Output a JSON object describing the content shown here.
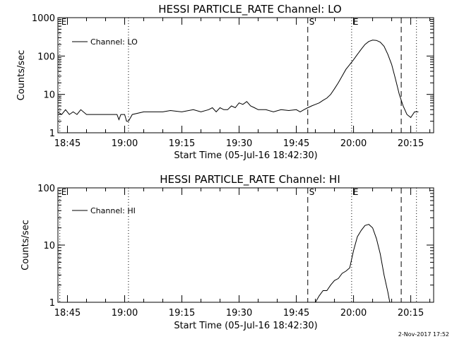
{
  "footer": {
    "timestamp": "2-Nov-2017 17:52"
  },
  "colors": {
    "background": "#ffffff",
    "ink": "#000000"
  },
  "chart_data": [
    {
      "type": "line",
      "title": "HESSI PARTICLE_RATE Channel: LO",
      "xlabel": "Start Time (05-Jul-16 18:42:30)",
      "ylabel": "Counts/sec",
      "y_scale": "log",
      "ylim": [
        1,
        1000
      ],
      "xlim": [
        "18:42:30",
        "20:21:00"
      ],
      "x_tick_labels": [
        "18:45",
        "19:00",
        "19:15",
        "19:30",
        "19:45",
        "20:00",
        "20:15"
      ],
      "y_tick_labels": [
        "1",
        "10",
        "100",
        "1000"
      ],
      "legend": {
        "placement": "top-left",
        "entries": [
          "Channel: LO"
        ]
      },
      "grid": false,
      "markers": [
        {
          "label": "E",
          "time": "18:43:00",
          "style": "dotted"
        },
        {
          "label": "",
          "time": "19:01:00",
          "style": "dotted"
        },
        {
          "label": "S",
          "time": "19:48:00",
          "style": "dashed"
        },
        {
          "label": "E",
          "time": "19:59:30",
          "style": "dotted"
        },
        {
          "label": "",
          "time": "20:12:30",
          "style": "dashed"
        },
        {
          "label": "",
          "time": "20:16:30",
          "style": "dotted"
        }
      ],
      "series": [
        {
          "name": "Channel: LO",
          "x": [
            "18:42:30",
            "18:43:30",
            "18:44:30",
            "18:45:30",
            "18:46:30",
            "18:47:30",
            "18:48:30",
            "18:50:00",
            "18:52:00",
            "18:54:00",
            "18:56:00",
            "18:57:00",
            "18:58:00",
            "18:58:30",
            "18:59:00",
            "19:00:00",
            "19:00:30",
            "19:01:00",
            "19:02:00",
            "19:05:00",
            "19:08:00",
            "19:10:00",
            "19:12:00",
            "19:15:00",
            "19:18:00",
            "19:20:00",
            "19:22:00",
            "19:23:00",
            "19:24:00",
            "19:25:00",
            "19:26:00",
            "19:27:00",
            "19:28:00",
            "19:29:00",
            "19:30:00",
            "19:31:00",
            "19:32:00",
            "19:33:00",
            "19:34:00",
            "19:35:00",
            "19:37:00",
            "19:39:00",
            "19:41:00",
            "19:43:00",
            "19:45:00",
            "19:46:00",
            "19:47:00",
            "19:48:00",
            "19:49:00",
            "19:50:00",
            "19:51:00",
            "19:52:00",
            "19:53:00",
            "19:54:00",
            "19:55:00",
            "19:56:00",
            "19:57:00",
            "19:58:00",
            "19:59:00",
            "20:00:00",
            "20:01:00",
            "20:02:00",
            "20:03:00",
            "20:04:00",
            "20:05:00",
            "20:06:00",
            "20:07:00",
            "20:08:00",
            "20:09:00",
            "20:10:00",
            "20:11:00",
            "20:12:00",
            "20:13:00",
            "20:14:00",
            "20:15:00",
            "20:16:00",
            "20:17:00"
          ],
          "y": [
            3.5,
            3,
            4,
            3,
            3.5,
            3,
            4,
            3,
            3,
            3,
            3,
            3,
            3,
            2.2,
            3,
            3,
            2,
            2,
            3,
            3.5,
            3.5,
            3.5,
            3.8,
            3.5,
            4,
            3.5,
            4,
            4.5,
            3.5,
            4.5,
            4,
            4,
            5,
            4.5,
            6,
            5.5,
            6.5,
            5,
            4.5,
            4,
            4,
            3.5,
            4,
            3.8,
            4,
            3.5,
            4,
            4.5,
            5,
            5.5,
            6,
            7,
            8,
            10,
            14,
            20,
            30,
            45,
            60,
            80,
            110,
            150,
            200,
            240,
            260,
            255,
            230,
            180,
            110,
            60,
            25,
            10,
            5,
            3,
            2.5,
            3.5,
            3.5
          ]
        }
      ]
    },
    {
      "type": "line",
      "title": "HESSI PARTICLE_RATE Channel: HI",
      "xlabel": "Start Time (05-Jul-16 18:42:30)",
      "ylabel": "Counts/sec",
      "y_scale": "log",
      "ylim": [
        1,
        100
      ],
      "xlim": [
        "18:42:30",
        "20:21:00"
      ],
      "x_tick_labels": [
        "18:45",
        "19:00",
        "19:15",
        "19:30",
        "19:45",
        "20:00",
        "20:15"
      ],
      "y_tick_labels": [
        "1",
        "10",
        "100"
      ],
      "legend": {
        "placement": "top-left",
        "entries": [
          "Channel: HI"
        ]
      },
      "grid": false,
      "markers": [
        {
          "label": "E",
          "time": "18:43:00",
          "style": "dotted"
        },
        {
          "label": "",
          "time": "19:01:00",
          "style": "dotted"
        },
        {
          "label": "S",
          "time": "19:48:00",
          "style": "dashed"
        },
        {
          "label": "E",
          "time": "19:59:30",
          "style": "dotted"
        },
        {
          "label": "",
          "time": "20:12:30",
          "style": "dashed"
        },
        {
          "label": "",
          "time": "20:16:30",
          "style": "dotted"
        }
      ],
      "series": [
        {
          "name": "Channel: HI",
          "x": [
            "19:50:00",
            "19:51:00",
            "19:52:00",
            "19:53:00",
            "19:54:00",
            "19:55:00",
            "19:56:00",
            "19:57:00",
            "19:58:00",
            "19:59:00",
            "20:00:00",
            "20:01:00",
            "20:02:00",
            "20:03:00",
            "20:04:00",
            "20:05:00",
            "20:06:00",
            "20:07:00",
            "20:08:00",
            "20:09:00",
            "20:09:30"
          ],
          "y": [
            1,
            1.3,
            1.6,
            1.6,
            2,
            2.4,
            2.6,
            3.2,
            3.5,
            4,
            8,
            14,
            18,
            22,
            23,
            20,
            13,
            7,
            3,
            1.5,
            1
          ]
        }
      ]
    }
  ]
}
